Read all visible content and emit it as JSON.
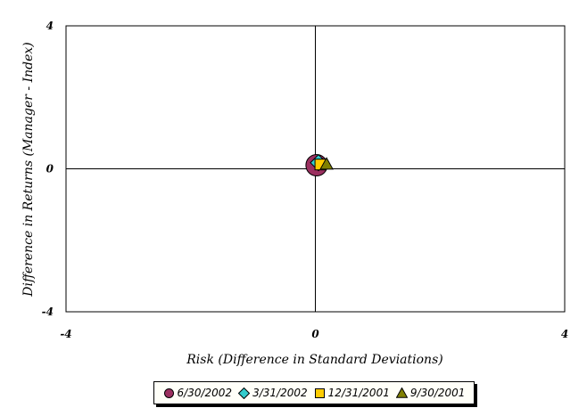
{
  "chart_data": {
    "type": "scatter",
    "xlabel": "Risk (Difference in Standard Deviations)",
    "ylabel": "Difference in Returns (Manager - Index)",
    "xlim": [
      -4,
      4
    ],
    "ylim": [
      -4,
      4
    ],
    "x_ticks": [
      "-4",
      "0",
      "4"
    ],
    "y_ticks": [
      "4",
      "0",
      "-4"
    ],
    "grid": false,
    "crosshair_at": [
      0,
      0
    ],
    "legend_position": "bottom",
    "series": [
      {
        "name": "6/30/2002",
        "x": [
          0.02
        ],
        "y": [
          0.1
        ],
        "marker": "circle",
        "color": "#9b3060"
      },
      {
        "name": "3/31/2002",
        "x": [
          0.05
        ],
        "y": [
          0.17
        ],
        "marker": "diamond",
        "color": "#33cccc"
      },
      {
        "name": "12/31/2001",
        "x": [
          0.08
        ],
        "y": [
          0.12
        ],
        "marker": "square",
        "color": "#ffcc00"
      },
      {
        "name": "9/30/2001",
        "x": [
          0.18
        ],
        "y": [
          0.13
        ],
        "marker": "triangle",
        "color": "#808000"
      }
    ]
  }
}
